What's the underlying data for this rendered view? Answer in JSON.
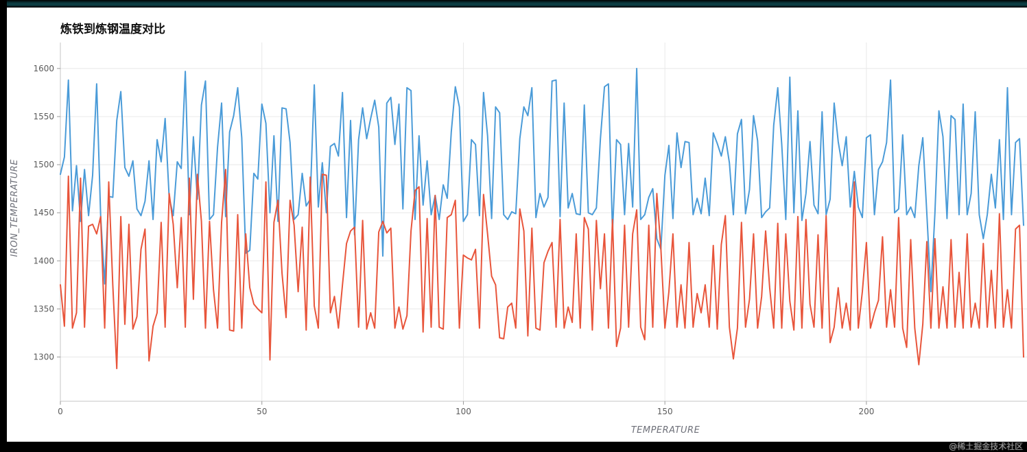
{
  "window": {
    "watermark": "@稀土掘金技术社区"
  },
  "chart_data": {
    "type": "line",
    "title": "炼铁到炼钢温度对比",
    "xlabel": "TEMPERATURE",
    "ylabel": "IRON_TEMPERATURE",
    "grid": true,
    "legend_position": "none",
    "xticks": [
      0,
      50,
      100,
      150,
      200
    ],
    "yticks": [
      1300,
      1350,
      1400,
      1450,
      1500,
      1550,
      1600
    ],
    "xlim": [
      0,
      239
    ],
    "ylim": [
      1254,
      1627
    ],
    "x_start": 0,
    "x_step": 1,
    "series": [
      {
        "id": "blue-series",
        "color": "#4a9bd8",
        "values": [
          1490,
          1508,
          1588,
          1452,
          1499,
          1441,
          1495,
          1447,
          1489,
          1584,
          1447,
          1376,
          1467,
          1466,
          1546,
          1576,
          1497,
          1488,
          1504,
          1454,
          1447,
          1462,
          1504,
          1443,
          1526,
          1503,
          1548,
          1466,
          1447,
          1503,
          1496,
          1597,
          1448,
          1529,
          1464,
          1562,
          1587,
          1443,
          1448,
          1518,
          1564,
          1446,
          1534,
          1551,
          1580,
          1528,
          1408,
          1411,
          1491,
          1485,
          1563,
          1543,
          1450,
          1530,
          1441,
          1559,
          1558,
          1523,
          1443,
          1448,
          1491,
          1457,
          1464,
          1583,
          1456,
          1502,
          1450,
          1519,
          1522,
          1509,
          1575,
          1445,
          1546,
          1427,
          1526,
          1559,
          1527,
          1548,
          1567,
          1539,
          1405,
          1564,
          1570,
          1521,
          1563,
          1454,
          1580,
          1577,
          1443,
          1530,
          1458,
          1504,
          1448,
          1468,
          1443,
          1479,
          1465,
          1534,
          1581,
          1560,
          1441,
          1448,
          1526,
          1521,
          1447,
          1575,
          1530,
          1444,
          1560,
          1554,
          1448,
          1443,
          1451,
          1449,
          1527,
          1560,
          1551,
          1580,
          1445,
          1470,
          1456,
          1466,
          1587,
          1588,
          1446,
          1564,
          1455,
          1470,
          1449,
          1448,
          1562,
          1450,
          1448,
          1455,
          1527,
          1581,
          1584,
          1430,
          1526,
          1521,
          1448,
          1522,
          1456,
          1600,
          1443,
          1448,
          1466,
          1475,
          1423,
          1412,
          1489,
          1520,
          1444,
          1533,
          1497,
          1524,
          1523,
          1448,
          1465,
          1449,
          1486,
          1447,
          1533,
          1522,
          1509,
          1529,
          1502,
          1448,
          1532,
          1547,
          1449,
          1474,
          1551,
          1525,
          1445,
          1451,
          1455,
          1541,
          1580,
          1521,
          1443,
          1591,
          1450,
          1556,
          1442,
          1470,
          1524,
          1458,
          1449,
          1555,
          1448,
          1464,
          1564,
          1524,
          1499,
          1529,
          1456,
          1493,
          1456,
          1445,
          1528,
          1531,
          1448,
          1495,
          1503,
          1523,
          1588,
          1450,
          1454,
          1531,
          1448,
          1456,
          1445,
          1499,
          1528,
          1449,
          1368,
          1450,
          1556,
          1529,
          1444,
          1551,
          1547,
          1448,
          1563,
          1448,
          1470,
          1555,
          1448,
          1423,
          1448,
          1490,
          1455,
          1526,
          1443,
          1580,
          1448,
          1523,
          1527,
          1437
        ]
      },
      {
        "id": "red-series",
        "color": "#e8553b",
        "values": [
          1375,
          1332,
          1488,
          1330,
          1346,
          1486,
          1331,
          1436,
          1438,
          1428,
          1446,
          1330,
          1482,
          1375,
          1288,
          1446,
          1334,
          1438,
          1329,
          1342,
          1412,
          1433,
          1296,
          1332,
          1346,
          1440,
          1331,
          1470,
          1438,
          1372,
          1445,
          1331,
          1486,
          1360,
          1490,
          1441,
          1330,
          1441,
          1370,
          1330,
          1440,
          1495,
          1328,
          1327,
          1448,
          1330,
          1428,
          1372,
          1355,
          1350,
          1346,
          1482,
          1297,
          1440,
          1463,
          1387,
          1341,
          1463,
          1437,
          1368,
          1435,
          1328,
          1487,
          1353,
          1330,
          1490,
          1489,
          1346,
          1363,
          1330,
          1375,
          1418,
          1431,
          1435,
          1331,
          1442,
          1329,
          1346,
          1330,
          1430,
          1441,
          1429,
          1434,
          1330,
          1352,
          1329,
          1343,
          1431,
          1473,
          1477,
          1326,
          1444,
          1331,
          1468,
          1331,
          1329,
          1445,
          1448,
          1463,
          1330,
          1406,
          1403,
          1401,
          1412,
          1330,
          1469,
          1428,
          1384,
          1375,
          1320,
          1319,
          1352,
          1356,
          1330,
          1454,
          1431,
          1322,
          1434,
          1330,
          1328,
          1398,
          1410,
          1419,
          1331,
          1443,
          1330,
          1352,
          1336,
          1428,
          1330,
          1445,
          1433,
          1328,
          1442,
          1371,
          1428,
          1330,
          1443,
          1311,
          1330,
          1437,
          1331,
          1428,
          1453,
          1331,
          1318,
          1437,
          1331,
          1470,
          1413,
          1330,
          1368,
          1428,
          1331,
          1375,
          1330,
          1419,
          1331,
          1366,
          1346,
          1375,
          1331,
          1416,
          1329,
          1417,
          1447,
          1331,
          1298,
          1330,
          1440,
          1331,
          1360,
          1428,
          1330,
          1363,
          1431,
          1372,
          1330,
          1439,
          1330,
          1428,
          1358,
          1328,
          1446,
          1330,
          1443,
          1355,
          1331,
          1427,
          1330,
          1447,
          1315,
          1331,
          1372,
          1330,
          1356,
          1328,
          1482,
          1330,
          1368,
          1419,
          1330,
          1346,
          1359,
          1425,
          1331,
          1370,
          1331,
          1445,
          1330,
          1310,
          1422,
          1330,
          1292,
          1334,
          1420,
          1330,
          1423,
          1330,
          1373,
          1330,
          1422,
          1331,
          1388,
          1330,
          1428,
          1331,
          1356,
          1330,
          1418,
          1331,
          1390,
          1330,
          1449,
          1331,
          1370,
          1330,
          1433,
          1437,
          1300
        ]
      }
    ]
  }
}
